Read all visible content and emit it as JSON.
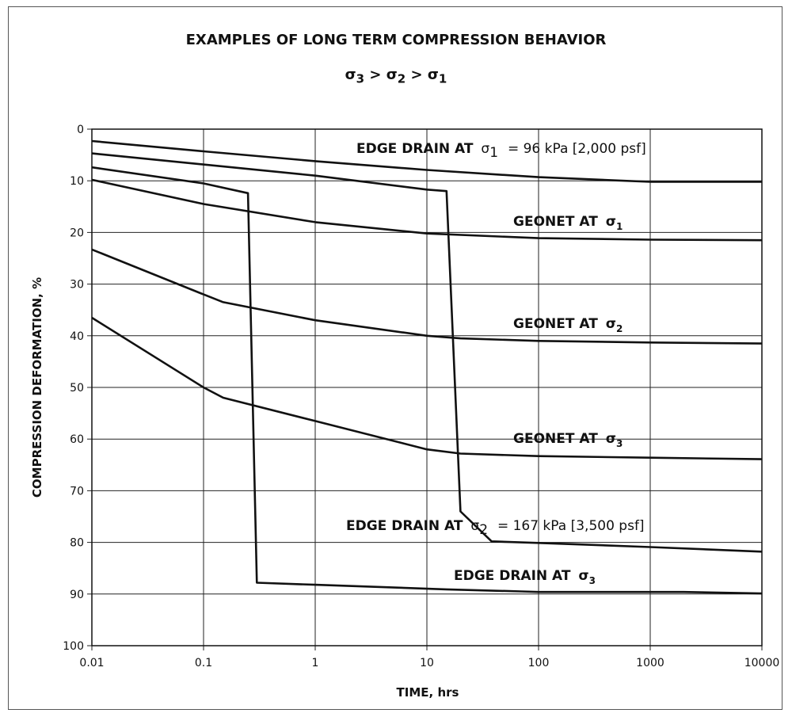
{
  "chart_data": {
    "type": "line",
    "title": "EXAMPLES OF LONG TERM COMPRESSION BEHAVIOR",
    "subtitle": "σ3 > σ2 > σ1",
    "xlabel": "TIME, hrs",
    "ylabel": "COMPRESSION DEFORMATION, %",
    "x_scale": "log",
    "xlim": [
      0.01,
      10000
    ],
    "ylim": [
      0,
      100
    ],
    "y_inverted": true,
    "grid": true,
    "x_ticks": [
      "0.01",
      "0.1",
      "1",
      "10",
      "100",
      "1000",
      "10000"
    ],
    "y_ticks": [
      "0",
      "10",
      "20",
      "30",
      "40",
      "50",
      "60",
      "70",
      "80",
      "90",
      "100"
    ],
    "series": [
      {
        "name": "EDGE DRAIN AT σ1 = 96 kPa [2,000 psf]",
        "x": [
          0.01,
          0.1,
          1,
          10,
          100,
          1000,
          10000
        ],
        "y": [
          2.3,
          4.3,
          6.2,
          7.9,
          9.3,
          10.2,
          10.2
        ]
      },
      {
        "name": "GEONET AT σ1",
        "x": [
          0.01,
          0.1,
          1,
          10,
          100,
          1000,
          10000
        ],
        "y": [
          9.8,
          14.5,
          18.0,
          20.2,
          21.1,
          21.4,
          21.5
        ]
      },
      {
        "name": "GEONET AT σ2",
        "x": [
          0.01,
          0.1,
          0.15,
          1,
          10,
          20,
          100,
          1000,
          10000
        ],
        "y": [
          23.3,
          32.0,
          33.5,
          37.0,
          40.0,
          40.5,
          41.0,
          41.3,
          41.5
        ]
      },
      {
        "name": "GEONET AT σ3",
        "x": [
          0.01,
          0.1,
          0.15,
          1,
          10,
          20,
          100,
          1000,
          10000
        ],
        "y": [
          36.5,
          50.0,
          52.0,
          56.5,
          62.0,
          62.8,
          63.3,
          63.6,
          63.9
        ]
      },
      {
        "name": "EDGE DRAIN AT σ2 = 167 kPa [3,500 psf]",
        "x": [
          0.01,
          1,
          10,
          15,
          20,
          38,
          100,
          1000,
          10000
        ],
        "y": [
          4.7,
          9.0,
          11.7,
          12.0,
          74.0,
          79.8,
          80.1,
          80.9,
          81.8
        ]
      },
      {
        "name": "EDGE DRAIN AT σ3",
        "x": [
          0.01,
          0.1,
          0.25,
          0.3,
          1,
          15,
          70,
          100,
          1000,
          2000,
          10000
        ],
        "y": [
          7.4,
          10.5,
          12.4,
          87.8,
          88.2,
          89.1,
          89.5,
          89.6,
          89.6,
          89.6,
          89.9
        ]
      }
    ]
  },
  "title": "EXAMPLES OF LONG TERM COMPRESSION BEHAVIOR",
  "subtitle_parts": {
    "sigma": "σ",
    "s3": "3",
    "s2": "2",
    "s1": "1",
    "gt": ">"
  },
  "labels": {
    "edge_drain_at": "EDGE DRAIN AT",
    "geonet_at": "GEONET AT",
    "sigma": "σ",
    "sub1": "1",
    "sub2": "2",
    "sub3": "3",
    "ed1_value": "= 96 kPa [2,000 psf]",
    "ed2_value": "= 167 kPa [3,500 psf]"
  }
}
